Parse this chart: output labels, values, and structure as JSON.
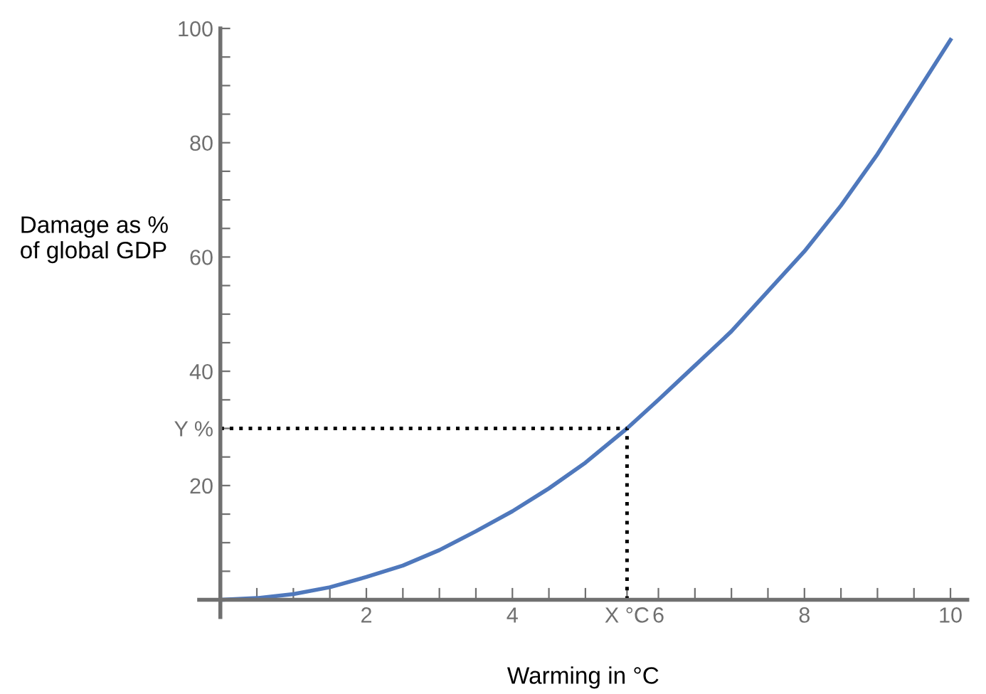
{
  "chart_data": {
    "type": "line",
    "xlabel": "Warming in °C",
    "ylabel": "Damage as %\nof global GDP",
    "x": [
      0,
      0.5,
      1,
      1.5,
      2,
      2.5,
      3,
      3.5,
      4,
      4.5,
      5,
      5.57,
      6,
      6.5,
      7,
      7.5,
      8,
      8.5,
      9,
      9.5,
      10
    ],
    "series": [
      {
        "color": "#4f78bc",
        "values": [
          0,
          0.3,
          1,
          2.2,
          4,
          6,
          8.7,
          12,
          15.5,
          19.5,
          24,
          30,
          35,
          41,
          47,
          54,
          61,
          69,
          78,
          88,
          98
        ]
      }
    ],
    "xlim": [
      -0.29,
      10.23
    ],
    "ylim": [
      -3,
      100
    ],
    "xticks": [
      {
        "value": 0,
        "label": null
      },
      {
        "value": 0.5,
        "label": null
      },
      {
        "value": 1,
        "label": null
      },
      {
        "value": 1.5,
        "label": null
      },
      2,
      {
        "value": 2.5,
        "label": null
      },
      {
        "value": 3,
        "label": null
      },
      {
        "value": 3.5,
        "label": null
      },
      4,
      {
        "value": 4.5,
        "label": null
      },
      {
        "value": 5,
        "label": null
      },
      {
        "value": 5.57,
        "label": "X °C"
      },
      6,
      {
        "value": 6.5,
        "label": null
      },
      {
        "value": 7,
        "label": null
      },
      {
        "value": 7.5,
        "label": null
      },
      8,
      {
        "value": 8.5,
        "label": null
      },
      {
        "value": 9,
        "label": null
      },
      {
        "value": 9.5,
        "label": null
      },
      10
    ],
    "yticks": [
      {
        "value": 0,
        "label": null
      },
      {
        "value": 5,
        "label": null
      },
      {
        "value": 10,
        "label": null
      },
      {
        "value": 15,
        "label": null
      },
      20,
      {
        "value": 25,
        "label": null
      },
      {
        "value": 30,
        "label": "Y %"
      },
      {
        "value": 35,
        "label": null
      },
      40,
      {
        "value": 45,
        "label": null
      },
      {
        "value": 50,
        "label": null
      },
      {
        "value": 55,
        "label": null
      },
      60,
      {
        "value": 65,
        "label": null
      },
      {
        "value": 70,
        "label": null
      },
      {
        "value": 75,
        "label": null
      },
      80,
      {
        "value": 85,
        "label": null
      },
      {
        "value": 90,
        "label": null
      },
      {
        "value": 95,
        "label": null
      },
      100
    ],
    "ref_lines": [
      {
        "axis": "x",
        "value": 5.57,
        "color": "#000000",
        "line_style": "dotted"
      },
      {
        "axis": "y",
        "value": 30,
        "color": "#000000",
        "line_style": "dotted"
      }
    ],
    "grid": false,
    "legend": false,
    "marker": "none",
    "line_style": "solid"
  }
}
